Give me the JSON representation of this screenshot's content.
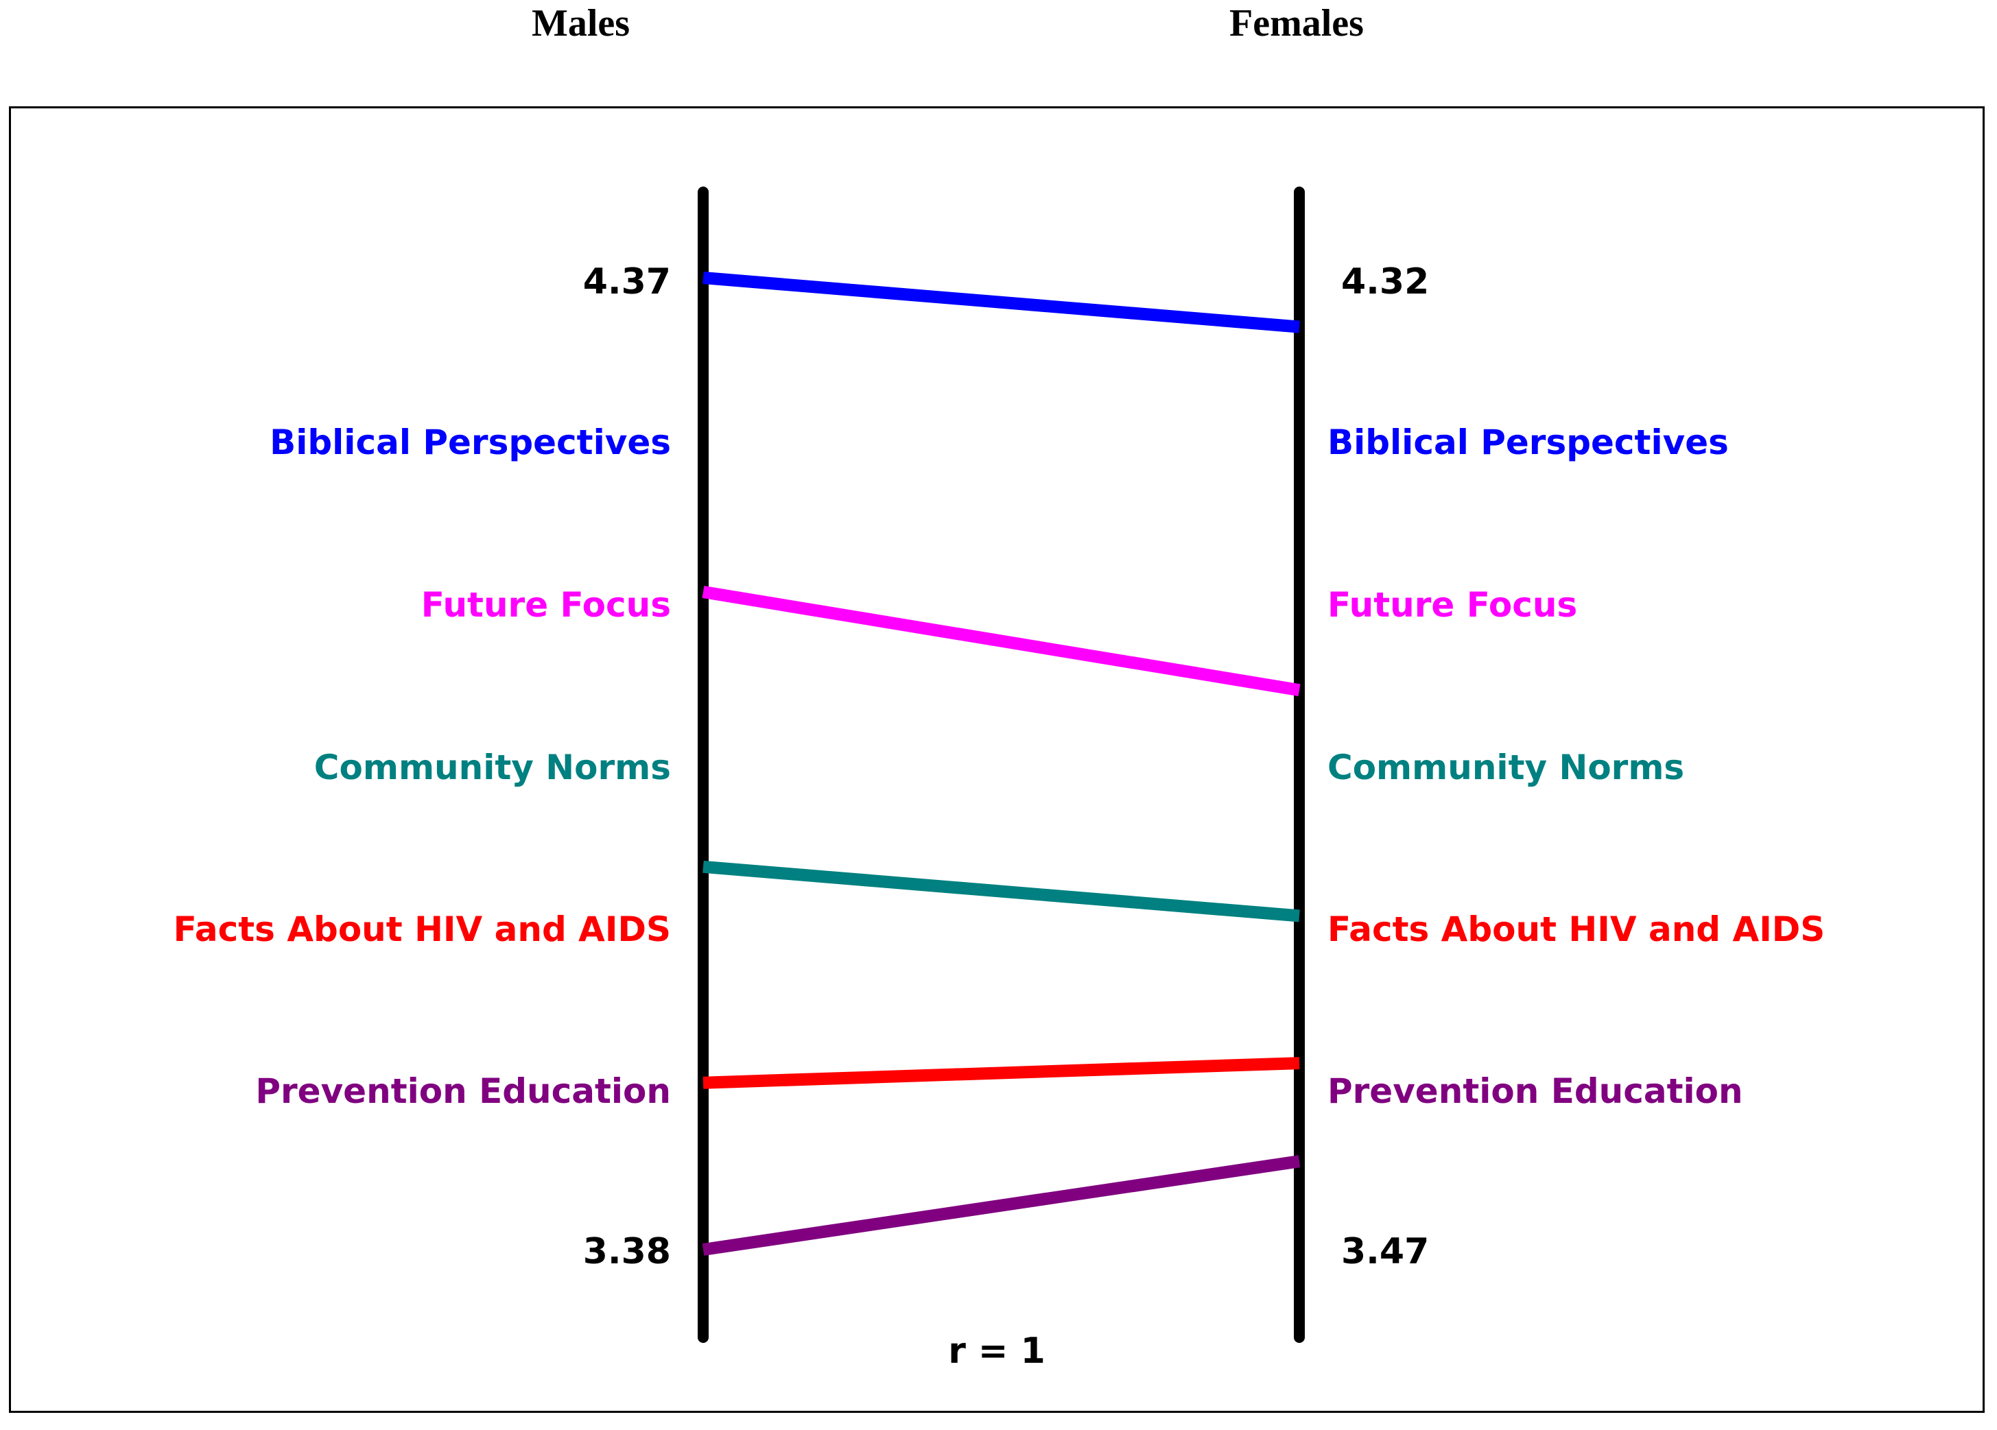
{
  "header": {
    "left_group": "Males",
    "right_group": "Females"
  },
  "ladder": {
    "top_left_value": "4.37",
    "top_right_value": "4.32",
    "bottom_left_value": "3.38",
    "bottom_right_value": "3.47",
    "correlation": "r = 1"
  },
  "scales": [
    {
      "name": "Biblical Perspectives",
      "color": "#0000FF",
      "left_rank": 1,
      "right_rank": 1
    },
    {
      "name": "Future Focus",
      "color": "#FF00FF",
      "left_rank": 2,
      "right_rank": 2
    },
    {
      "name": "Community Norms",
      "color": "#008080",
      "left_rank": 3,
      "right_rank": 3
    },
    {
      "name": "Facts About HIV and AIDS",
      "color": "#FF0000",
      "left_rank": 4,
      "right_rank": 4
    },
    {
      "name": "Prevention Education",
      "color": "#800080",
      "left_rank": 5,
      "right_rank": 5
    }
  ],
  "connectors": [
    {
      "scale": "Biblical Perspectives",
      "color": "#0000FF",
      "left_level": 4.37,
      "right_level": 4.32
    },
    {
      "scale": "Future Focus",
      "color": "#FF00FF",
      "left_level": 4.05,
      "right_level": 3.95
    },
    {
      "scale": "Community Norms",
      "color": "#008080",
      "left_level": 3.77,
      "right_level": 3.72
    },
    {
      "scale": "Facts About HIV and AIDS",
      "color": "#FF0000",
      "left_level": 3.55,
      "right_level": 3.57
    },
    {
      "scale": "Prevention Education",
      "color": "#800080",
      "left_level": 3.38,
      "right_level": 3.47
    }
  ]
}
